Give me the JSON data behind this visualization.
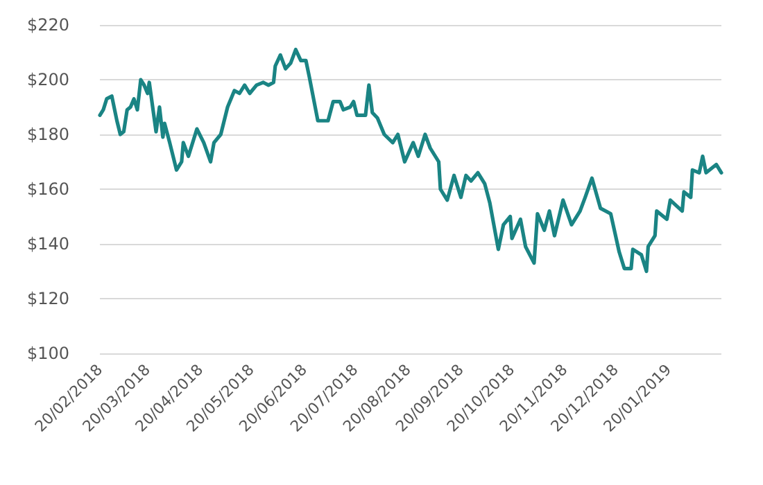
{
  "chart_data": {
    "type": "line",
    "xlim": [
      "2018-02-20",
      "2019-02-20"
    ],
    "xticks": [
      {
        "value": "2018-02-20",
        "label": "20/02/2018"
      },
      {
        "value": "2018-03-20",
        "label": "20/03/2018"
      },
      {
        "value": "2018-04-20",
        "label": "20/04/2018"
      },
      {
        "value": "2018-05-20",
        "label": "20/05/2018"
      },
      {
        "value": "2018-06-20",
        "label": "20/06/2018"
      },
      {
        "value": "2018-07-20",
        "label": "20/07/2018"
      },
      {
        "value": "2018-08-20",
        "label": "20/08/2018"
      },
      {
        "value": "2018-09-20",
        "label": "20/09/2018"
      },
      {
        "value": "2018-10-20",
        "label": "20/10/2018"
      },
      {
        "value": "2018-11-20",
        "label": "20/11/2018"
      },
      {
        "value": "2018-12-20",
        "label": "20/12/2018"
      },
      {
        "value": "2019-01-20",
        "label": "20/01/2019"
      }
    ],
    "ylim": [
      100,
      220
    ],
    "yticks": [
      {
        "value": 100,
        "label": "$100"
      },
      {
        "value": 120,
        "label": "$120"
      },
      {
        "value": 140,
        "label": "$140"
      },
      {
        "value": 160,
        "label": "$160"
      },
      {
        "value": 180,
        "label": "$180"
      },
      {
        "value": 200,
        "label": "$200"
      },
      {
        "value": 220,
        "label": "$220"
      }
    ],
    "grid": "y",
    "marker": "none",
    "line_style": "solid",
    "x": [
      "2018-02-20",
      "2018-02-22",
      "2018-02-24",
      "2018-02-27",
      "2018-03-02",
      "2018-03-04",
      "2018-03-06",
      "2018-03-08",
      "2018-03-10",
      "2018-03-12",
      "2018-03-14",
      "2018-03-16",
      "2018-03-18",
      "2018-03-20",
      "2018-03-21",
      "2018-03-25",
      "2018-03-27",
      "2018-03-29",
      "2018-03-30",
      "2018-04-02",
      "2018-04-06",
      "2018-04-09",
      "2018-04-10",
      "2018-04-13",
      "2018-04-18",
      "2018-04-22",
      "2018-04-26",
      "2018-04-28",
      "2018-05-02",
      "2018-05-06",
      "2018-05-10",
      "2018-05-13",
      "2018-05-16",
      "2018-05-19",
      "2018-05-23",
      "2018-05-27",
      "2018-05-30",
      "2018-06-02",
      "2018-06-03",
      "2018-06-06",
      "2018-06-09",
      "2018-06-12",
      "2018-06-15",
      "2018-06-18",
      "2018-06-21",
      "2018-06-23",
      "2018-06-28",
      "2018-07-04",
      "2018-07-07",
      "2018-07-11",
      "2018-07-13",
      "2018-07-17",
      "2018-07-19",
      "2018-07-21",
      "2018-07-26",
      "2018-07-28",
      "2018-07-30",
      "2018-08-02",
      "2018-08-06",
      "2018-08-11",
      "2018-08-14",
      "2018-08-18",
      "2018-08-23",
      "2018-08-26",
      "2018-08-30",
      "2018-09-02",
      "2018-09-07",
      "2018-09-08",
      "2018-09-12",
      "2018-09-16",
      "2018-09-20",
      "2018-09-23",
      "2018-09-26",
      "2018-09-30",
      "2018-10-04",
      "2018-10-07",
      "2018-10-12",
      "2018-10-15",
      "2018-10-19",
      "2018-10-20",
      "2018-10-25",
      "2018-10-28",
      "2018-11-02",
      "2018-11-04",
      "2018-11-08",
      "2018-11-11",
      "2018-11-14",
      "2018-11-19",
      "2018-11-24",
      "2018-11-29",
      "2018-12-02",
      "2018-12-06",
      "2018-12-11",
      "2018-12-17",
      "2018-12-22",
      "2018-12-25",
      "2018-12-29",
      "2018-12-30",
      "2019-01-04",
      "2019-01-07",
      "2019-01-08",
      "2019-01-12",
      "2019-01-13",
      "2019-01-19",
      "2019-01-21",
      "2019-01-28",
      "2019-01-29",
      "2019-02-02",
      "2019-02-03",
      "2019-02-07",
      "2019-02-09",
      "2019-02-11",
      "2019-02-17",
      "2019-02-20"
    ],
    "series": [
      {
        "color": "#1a8484",
        "values": [
          187,
          189,
          193,
          194,
          185,
          180,
          181,
          189,
          190,
          193,
          189,
          200,
          198,
          195,
          199,
          181,
          190,
          179,
          184,
          177,
          167,
          170,
          177,
          172,
          182,
          177,
          170,
          177,
          180,
          190,
          196,
          195,
          198,
          195,
          198,
          199,
          198,
          199,
          205,
          209,
          204,
          206,
          211,
          207,
          207,
          201,
          185,
          185,
          192,
          192,
          189,
          190,
          192,
          187,
          187,
          198,
          188,
          186,
          180,
          177,
          180,
          170,
          177,
          172,
          180,
          175,
          170,
          160,
          156,
          165,
          157,
          165,
          163,
          166,
          162,
          155,
          138,
          147,
          150,
          142,
          149,
          139,
          133,
          151,
          145,
          152,
          143,
          156,
          147,
          152,
          157,
          164,
          153,
          151,
          137,
          131,
          131,
          138,
          136,
          130,
          139,
          143,
          152,
          149,
          156,
          152,
          159,
          157,
          167,
          166,
          172,
          166,
          169,
          166
        ]
      }
    ]
  }
}
